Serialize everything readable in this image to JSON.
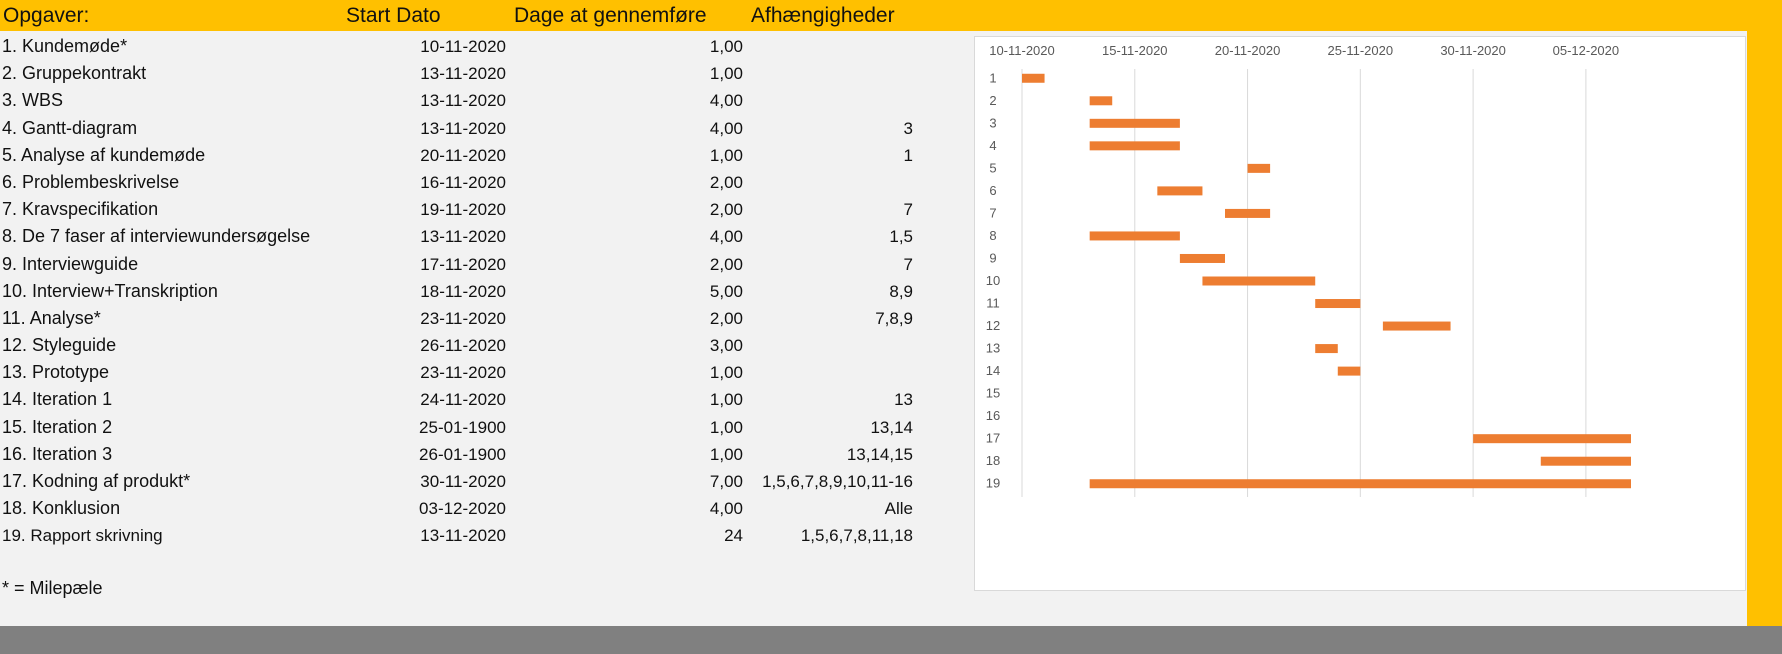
{
  "headers": {
    "task": "Opgaver:",
    "start": "Start Dato",
    "days": "Dage at gennemføre",
    "dependencies": "Afhængigheder"
  },
  "tasks": [
    {
      "name": "1. Kundemøde*",
      "start": "10-11-2020",
      "days": "1,00",
      "dep": ""
    },
    {
      "name": "2. Gruppekontrakt",
      "start": "13-11-2020",
      "days": "1,00",
      "dep": ""
    },
    {
      "name": "3. WBS",
      "start": "13-11-2020",
      "days": "4,00",
      "dep": ""
    },
    {
      "name": "4. Gantt-diagram",
      "start": "13-11-2020",
      "days": "4,00",
      "dep": "3"
    },
    {
      "name": "5. Analyse af kundemøde",
      "start": "20-11-2020",
      "days": "1,00",
      "dep": "1"
    },
    {
      "name": "6. Problembeskrivelse",
      "start": "16-11-2020",
      "days": "2,00",
      "dep": ""
    },
    {
      "name": "7. Kravspecifikation",
      "start": "19-11-2020",
      "days": "2,00",
      "dep": "7"
    },
    {
      "name": "8. De 7 faser af interviewundersøgelse",
      "start": "13-11-2020",
      "days": "4,00",
      "dep": "1,5"
    },
    {
      "name": "9. Interviewguide",
      "start": "17-11-2020",
      "days": "2,00",
      "dep": "7"
    },
    {
      "name": "10. Interview+Transkription",
      "start": "18-11-2020",
      "days": "5,00",
      "dep": "8,9"
    },
    {
      "name": "11. Analyse*",
      "start": "23-11-2020",
      "days": "2,00",
      "dep": "7,8,9"
    },
    {
      "name": "12. Styleguide",
      "start": "26-11-2020",
      "days": "3,00",
      "dep": ""
    },
    {
      "name": "13. Prototype",
      "start": "23-11-2020",
      "days": "1,00",
      "dep": ""
    },
    {
      "name": "14. Iteration 1",
      "start": "24-11-2020",
      "days": "1,00",
      "dep": "13"
    },
    {
      "name": "15. Iteration 2",
      "start": "25-01-1900",
      "days": "1,00",
      "dep": "13,14"
    },
    {
      "name": "16. Iteration 3",
      "start": "26-01-1900",
      "days": "1,00",
      "dep": "13,14,15"
    },
    {
      "name": "17. Kodning af produkt*",
      "start": "30-11-2020",
      "days": "7,00",
      "dep": "1,5,6,7,8,9,10,11-16"
    },
    {
      "name": "18. Konklusion",
      "start": "03-12-2020",
      "days": "4,00",
      "dep": "Alle"
    },
    {
      "name": "19. Rapport skrivning",
      "start": "13-11-2020",
      "days": "24",
      "dep": "1,5,6,7,8,11,18"
    }
  ],
  "note": "* = Milepæle",
  "chart_data": {
    "type": "bar",
    "orientation": "horizontal-gantt",
    "x_ticks": [
      "10-11-2020",
      "15-11-2020",
      "20-11-2020",
      "25-11-2020",
      "30-11-2020",
      "05-12-2020"
    ],
    "xlim": [
      "10-11-2020",
      "07-12-2020"
    ],
    "categories": [
      "1",
      "2",
      "3",
      "4",
      "5",
      "6",
      "7",
      "8",
      "9",
      "10",
      "11",
      "12",
      "13",
      "14",
      "15",
      "16",
      "17",
      "18",
      "19"
    ],
    "series": [
      {
        "starts": [
          "10-11-2020",
          "13-11-2020",
          "13-11-2020",
          "13-11-2020",
          "20-11-2020",
          "16-11-2020",
          "19-11-2020",
          "13-11-2020",
          "17-11-2020",
          "18-11-2020",
          "23-11-2020",
          "26-11-2020",
          "23-11-2020",
          "24-11-2020",
          null,
          null,
          "30-11-2020",
          "03-12-2020",
          "13-11-2020"
        ],
        "durations_days": [
          1,
          1,
          4,
          4,
          1,
          2,
          2,
          4,
          2,
          5,
          2,
          3,
          1,
          1,
          null,
          null,
          7,
          4,
          24
        ]
      }
    ],
    "bar_color": "#ed7d31",
    "grid": true
  }
}
